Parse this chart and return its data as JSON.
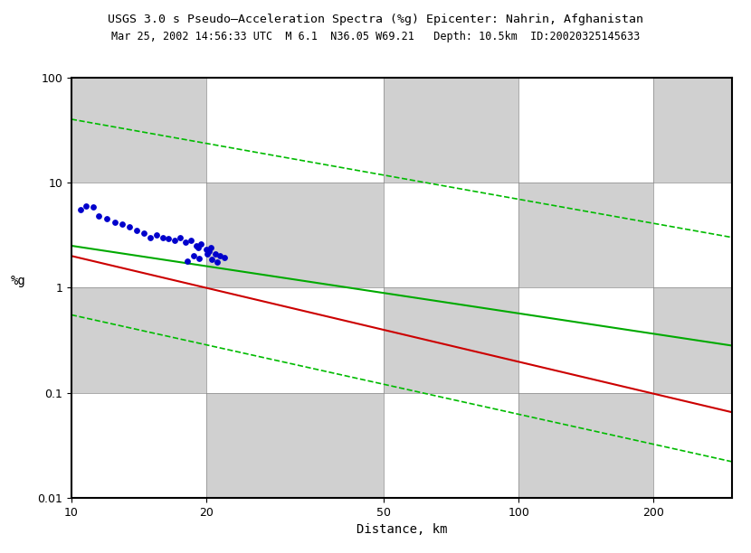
{
  "title_line1": "USGS 3.0 s Pseudo–Acceleration Spectra (%g) Epicenter: Nahrin, Afghanistan",
  "title_line2": "Mar 25, 2002 14:56:33 UTC  M 6.1  N36.05 W69.21   Depth: 10.5km  ID:20020325145633",
  "xlabel": "Distance, km",
  "ylabel": "%g",
  "xlim": [
    10,
    300
  ],
  "ylim": [
    0.01,
    100
  ],
  "xticks": [
    10,
    20,
    50,
    100,
    200
  ],
  "yticks": [
    0.01,
    0.1,
    1,
    10,
    100
  ],
  "scatter_x": [
    10.5,
    10.8,
    11.2,
    11.5,
    12.0,
    12.5,
    13.0,
    13.5,
    14.0,
    14.5,
    15.0,
    15.5,
    16.0,
    16.5,
    17.0,
    17.5,
    18.0,
    18.5,
    19.0,
    19.2,
    19.5,
    20.0,
    20.3,
    20.5,
    21.0,
    21.5,
    22.0,
    18.2,
    18.8,
    19.3,
    20.1,
    20.6,
    21.2
  ],
  "scatter_y": [
    5.5,
    6.0,
    5.8,
    4.8,
    4.5,
    4.2,
    4.0,
    3.8,
    3.5,
    3.3,
    3.0,
    3.2,
    3.0,
    2.9,
    2.8,
    3.0,
    2.7,
    2.8,
    2.5,
    2.4,
    2.6,
    2.3,
    2.2,
    2.4,
    2.1,
    2.0,
    1.95,
    1.8,
    2.0,
    1.9,
    2.1,
    1.85,
    1.75
  ],
  "red_line_y_at_10": 2.0,
  "red_line_y_at_300": 0.065,
  "green_solid_y_at_10": 2.5,
  "green_solid_y_at_300": 0.28,
  "green_dashed_upper_y_at_10": 40.0,
  "green_dashed_upper_y_at_300": 3.0,
  "green_dashed_lower_y_at_10": 0.55,
  "green_dashed_lower_y_at_300": 0.022,
  "scatter_color": "#0000cc",
  "scatter_size": 15,
  "red_color": "#cc0000",
  "green_color": "#00aa00",
  "green_dashed_color": "#00bb00",
  "checker_colors": [
    "#ffffff",
    "#d0d0d0"
  ],
  "title_fontsize": 9.5,
  "subtitle_fontsize": 8.5,
  "axis_fontsize": 10
}
